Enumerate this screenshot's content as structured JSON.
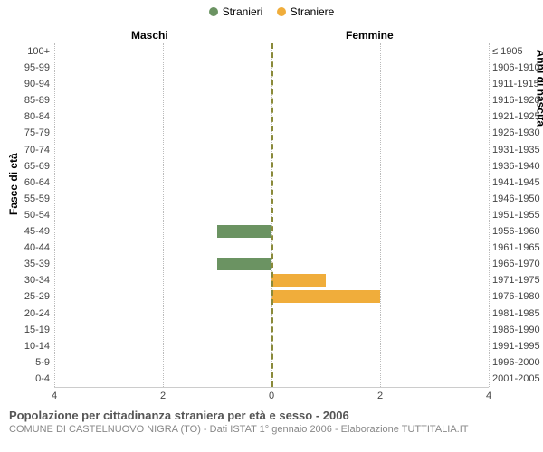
{
  "legend": {
    "male_label": "Stranieri",
    "female_label": "Straniere"
  },
  "columns": {
    "left_header": "Maschi",
    "right_header": "Femmine"
  },
  "axis_labels": {
    "left": "Fasce di età",
    "right": "Anni di nascita"
  },
  "colors": {
    "male": "#6b9362",
    "female": "#f0ad3b",
    "grid": "#bbbbbb",
    "center_line": "#8a8a3a",
    "background": "#ffffff"
  },
  "chart": {
    "type": "population_pyramid",
    "xmax": 4,
    "xticks_left": [
      4,
      2,
      0
    ],
    "xticks_right": [
      0,
      2,
      4
    ],
    "age_brackets": [
      "100+",
      "95-99",
      "90-94",
      "85-89",
      "80-84",
      "75-79",
      "70-74",
      "65-69",
      "60-64",
      "55-59",
      "50-54",
      "45-49",
      "40-44",
      "35-39",
      "30-34",
      "25-29",
      "20-24",
      "15-19",
      "10-14",
      "5-9",
      "0-4"
    ],
    "birth_years": [
      "≤ 1905",
      "1906-1910",
      "1911-1915",
      "1916-1920",
      "1921-1925",
      "1926-1930",
      "1931-1935",
      "1936-1940",
      "1941-1945",
      "1946-1950",
      "1951-1955",
      "1956-1960",
      "1961-1965",
      "1966-1970",
      "1971-1975",
      "1976-1980",
      "1981-1985",
      "1986-1990",
      "1991-1995",
      "1996-2000",
      "2001-2005"
    ],
    "male_values": [
      0,
      0,
      0,
      0,
      0,
      0,
      0,
      0,
      0,
      0,
      0,
      1,
      0,
      1,
      0,
      0,
      0,
      0,
      0,
      0,
      0
    ],
    "female_values": [
      0,
      0,
      0,
      0,
      0,
      0,
      0,
      0,
      0,
      0,
      0,
      0,
      0,
      0,
      1,
      2,
      0,
      0,
      0,
      0,
      0
    ]
  },
  "titles": {
    "main": "Popolazione per cittadinanza straniera per età e sesso - 2006",
    "sub": "COMUNE DI CASTELNUOVO NIGRA (TO) - Dati ISTAT 1° gennaio 2006 - Elaborazione TUTTITALIA.IT"
  }
}
